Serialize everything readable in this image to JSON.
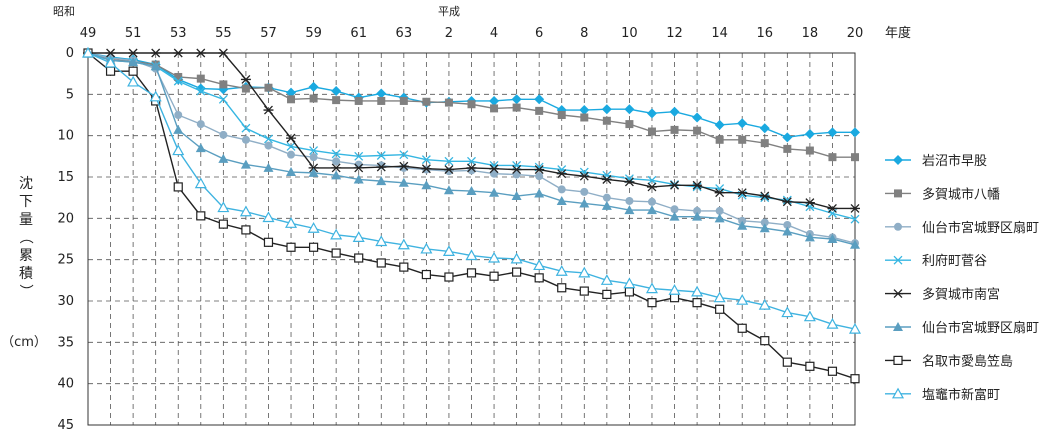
{
  "chart_data": {
    "type": "line",
    "era_labels": [
      "昭和",
      "平成"
    ],
    "x_tick_labels": [
      "49",
      "51",
      "53",
      "55",
      "57",
      "59",
      "61",
      "63",
      "2",
      "4",
      "6",
      "8",
      "10",
      "12",
      "14",
      "16",
      "18",
      "20"
    ],
    "xlabel": "年度",
    "ylabel": "沈下量（累積）",
    "y_unit": "（cm）",
    "ylim": [
      0,
      45
    ],
    "y_ticks": [
      0,
      5,
      10,
      15,
      20,
      25,
      30,
      35,
      40,
      45
    ],
    "y_inverted": true,
    "grid": true,
    "legend_position": "right",
    "x": [
      "S49",
      "S50",
      "S51",
      "S52",
      "S53",
      "S54",
      "S55",
      "S56",
      "S57",
      "S58",
      "S59",
      "S60",
      "S61",
      "S62",
      "S63",
      "H1",
      "H2",
      "H3",
      "H4",
      "H5",
      "H6",
      "H7",
      "H8",
      "H9",
      "H10",
      "H11",
      "H12",
      "H13",
      "H14",
      "H15",
      "H16",
      "H17",
      "H18",
      "H19",
      "H20"
    ],
    "series": [
      {
        "name": "岩沼市早股",
        "color": "#1aa9e0",
        "marker": "diamond",
        "values": [
          0,
          0.5,
          0.8,
          1.4,
          3.2,
          4.3,
          4.4,
          4.1,
          4.2,
          4.8,
          4.1,
          4.6,
          5.4,
          4.9,
          5.4,
          6.0,
          5.9,
          5.8,
          5.8,
          5.6,
          5.6,
          6.9,
          6.9,
          6.8,
          6.8,
          7.3,
          7.1,
          7.8,
          8.7,
          8.5,
          9.1,
          10.2,
          9.8,
          9.6,
          9.6
        ]
      },
      {
        "name": "多賀城市八幡",
        "color": "#808080",
        "marker": "square",
        "values": [
          0,
          0.8,
          1.0,
          1.4,
          2.9,
          3.1,
          3.8,
          4.3,
          4.2,
          5.6,
          5.5,
          5.7,
          5.8,
          5.8,
          5.8,
          5.9,
          6.0,
          6.2,
          6.7,
          6.6,
          7.0,
          7.5,
          7.8,
          8.2,
          8.6,
          9.5,
          9.3,
          9.4,
          10.5,
          10.5,
          10.9,
          11.6,
          11.8,
          12.6,
          12.6
        ]
      },
      {
        "name": "仙台市宮城野区扇町",
        "color": "#8faec6",
        "marker": "circle",
        "values": [
          0,
          0.6,
          0.9,
          1.9,
          7.5,
          8.6,
          9.9,
          10.5,
          11.2,
          12.3,
          12.6,
          13.1,
          13.5,
          13.6,
          13.9,
          14.1,
          14.3,
          14.2,
          14.6,
          14.7,
          14.9,
          16.5,
          16.8,
          17.5,
          17.9,
          18.0,
          18.9,
          19.1,
          19.1,
          20.3,
          20.5,
          20.8,
          21.9,
          22.3,
          23.0
        ]
      },
      {
        "name": "利府町菅谷",
        "color": "#35b6e2",
        "marker": "x",
        "values": [
          0,
          0.9,
          1.1,
          1.6,
          3.4,
          4.6,
          5.6,
          9.1,
          10.4,
          11.3,
          11.8,
          12.2,
          12.5,
          12.4,
          12.3,
          12.9,
          13.1,
          13.1,
          13.6,
          13.6,
          13.8,
          14.1,
          14.4,
          14.8,
          15.2,
          15.4,
          15.9,
          16.2,
          16.4,
          17.2,
          17.5,
          17.8,
          18.6,
          19.4,
          20.1
        ]
      },
      {
        "name": "多賀城市南宮",
        "color": "#222222",
        "marker": "asterisk",
        "values": [
          0,
          0,
          0,
          0,
          0,
          0,
          0,
          3.2,
          6.9,
          10.3,
          13.9,
          13.9,
          13.9,
          13.8,
          13.7,
          14.0,
          14.1,
          13.9,
          14.0,
          14.1,
          14.1,
          14.6,
          14.9,
          15.3,
          15.6,
          16.2,
          16.0,
          16.0,
          16.9,
          16.9,
          17.3,
          18.0,
          18.1,
          18.8,
          18.8
        ]
      },
      {
        "name": "仙台市宮城野区扇町",
        "color": "#5a9ec0",
        "marker": "triangle",
        "values": [
          0,
          0.9,
          1.1,
          1.6,
          9.3,
          11.5,
          12.8,
          13.5,
          13.9,
          14.4,
          14.5,
          14.8,
          15.3,
          15.5,
          15.7,
          16.0,
          16.6,
          16.7,
          16.9,
          17.3,
          17.0,
          17.9,
          18.2,
          18.5,
          19.0,
          19.0,
          19.8,
          19.8,
          20.0,
          20.9,
          21.2,
          21.6,
          22.3,
          22.5,
          23.2
        ]
      },
      {
        "name": "名取市愛島笠島",
        "color": "#222222",
        "marker": "open-square",
        "values": [
          0,
          2.2,
          2.2,
          5.8,
          16.2,
          19.7,
          20.7,
          21.4,
          22.9,
          23.5,
          23.5,
          24.2,
          24.8,
          25.4,
          25.9,
          26.8,
          27.1,
          26.6,
          27.0,
          26.5,
          27.2,
          28.4,
          28.8,
          29.2,
          28.9,
          30.2,
          29.6,
          30.2,
          31.0,
          33.3,
          34.8,
          37.4,
          37.9,
          38.5,
          39.4
        ]
      },
      {
        "name": "塩竈市新富町",
        "color": "#3fb3e0",
        "marker": "open-triangle",
        "values": [
          0,
          1.2,
          3.5,
          5.3,
          11.8,
          15.8,
          18.7,
          19.2,
          19.9,
          20.6,
          21.2,
          22.0,
          22.3,
          22.8,
          23.2,
          23.7,
          24.0,
          24.5,
          24.8,
          24.9,
          25.7,
          26.4,
          26.6,
          27.5,
          27.9,
          28.5,
          28.7,
          28.9,
          29.6,
          29.9,
          30.5,
          31.4,
          31.9,
          32.8,
          33.4
        ]
      }
    ]
  }
}
